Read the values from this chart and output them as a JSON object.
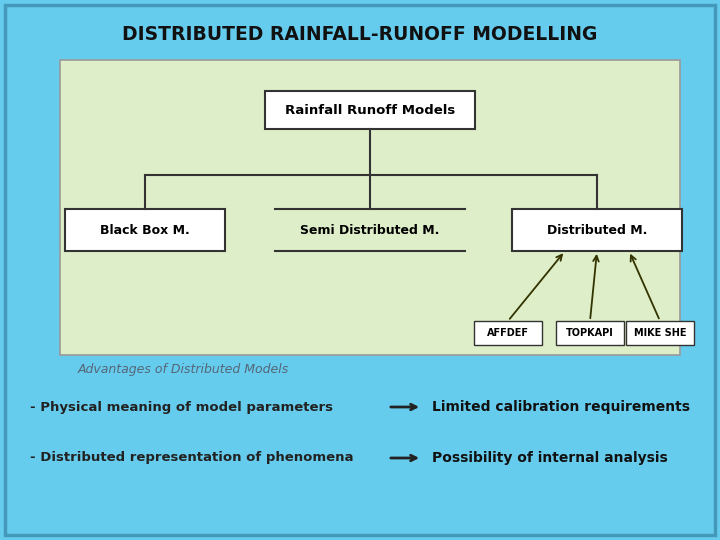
{
  "title": "DISTRIBUTED RAINFALL-RUNOFF MODELLING",
  "background_outer": "#66CCEE",
  "background_inner": "#DDEEC8",
  "title_color": "#111111",
  "border_color": "#4499BB",
  "box_facecolor": "#FFFFFF",
  "box_edgecolor": "#333333",
  "top_box_text": "Rainfall Runoff Models",
  "child_boxes": [
    "Black Box M.",
    "Semi Distributed M.",
    "Distributed M."
  ],
  "sub_boxes": [
    "AFFDEF",
    "TOPKAPI",
    "MIKE SHE"
  ],
  "advantages_title": "Advantages of Distributed Models",
  "advantages_items": [
    [
      "- Physical meaning of model parameters",
      "Limited calibration requirements"
    ],
    [
      "- Distributed representation of phenomena",
      "Possibility of internal analysis"
    ]
  ],
  "arrow_color": "#333300",
  "line_color": "#333333",
  "adv_title_color": "#556677",
  "adv_left_color": "#222222",
  "adv_right_color": "#111111",
  "fig_w": 7.2,
  "fig_h": 5.4,
  "dpi": 100
}
